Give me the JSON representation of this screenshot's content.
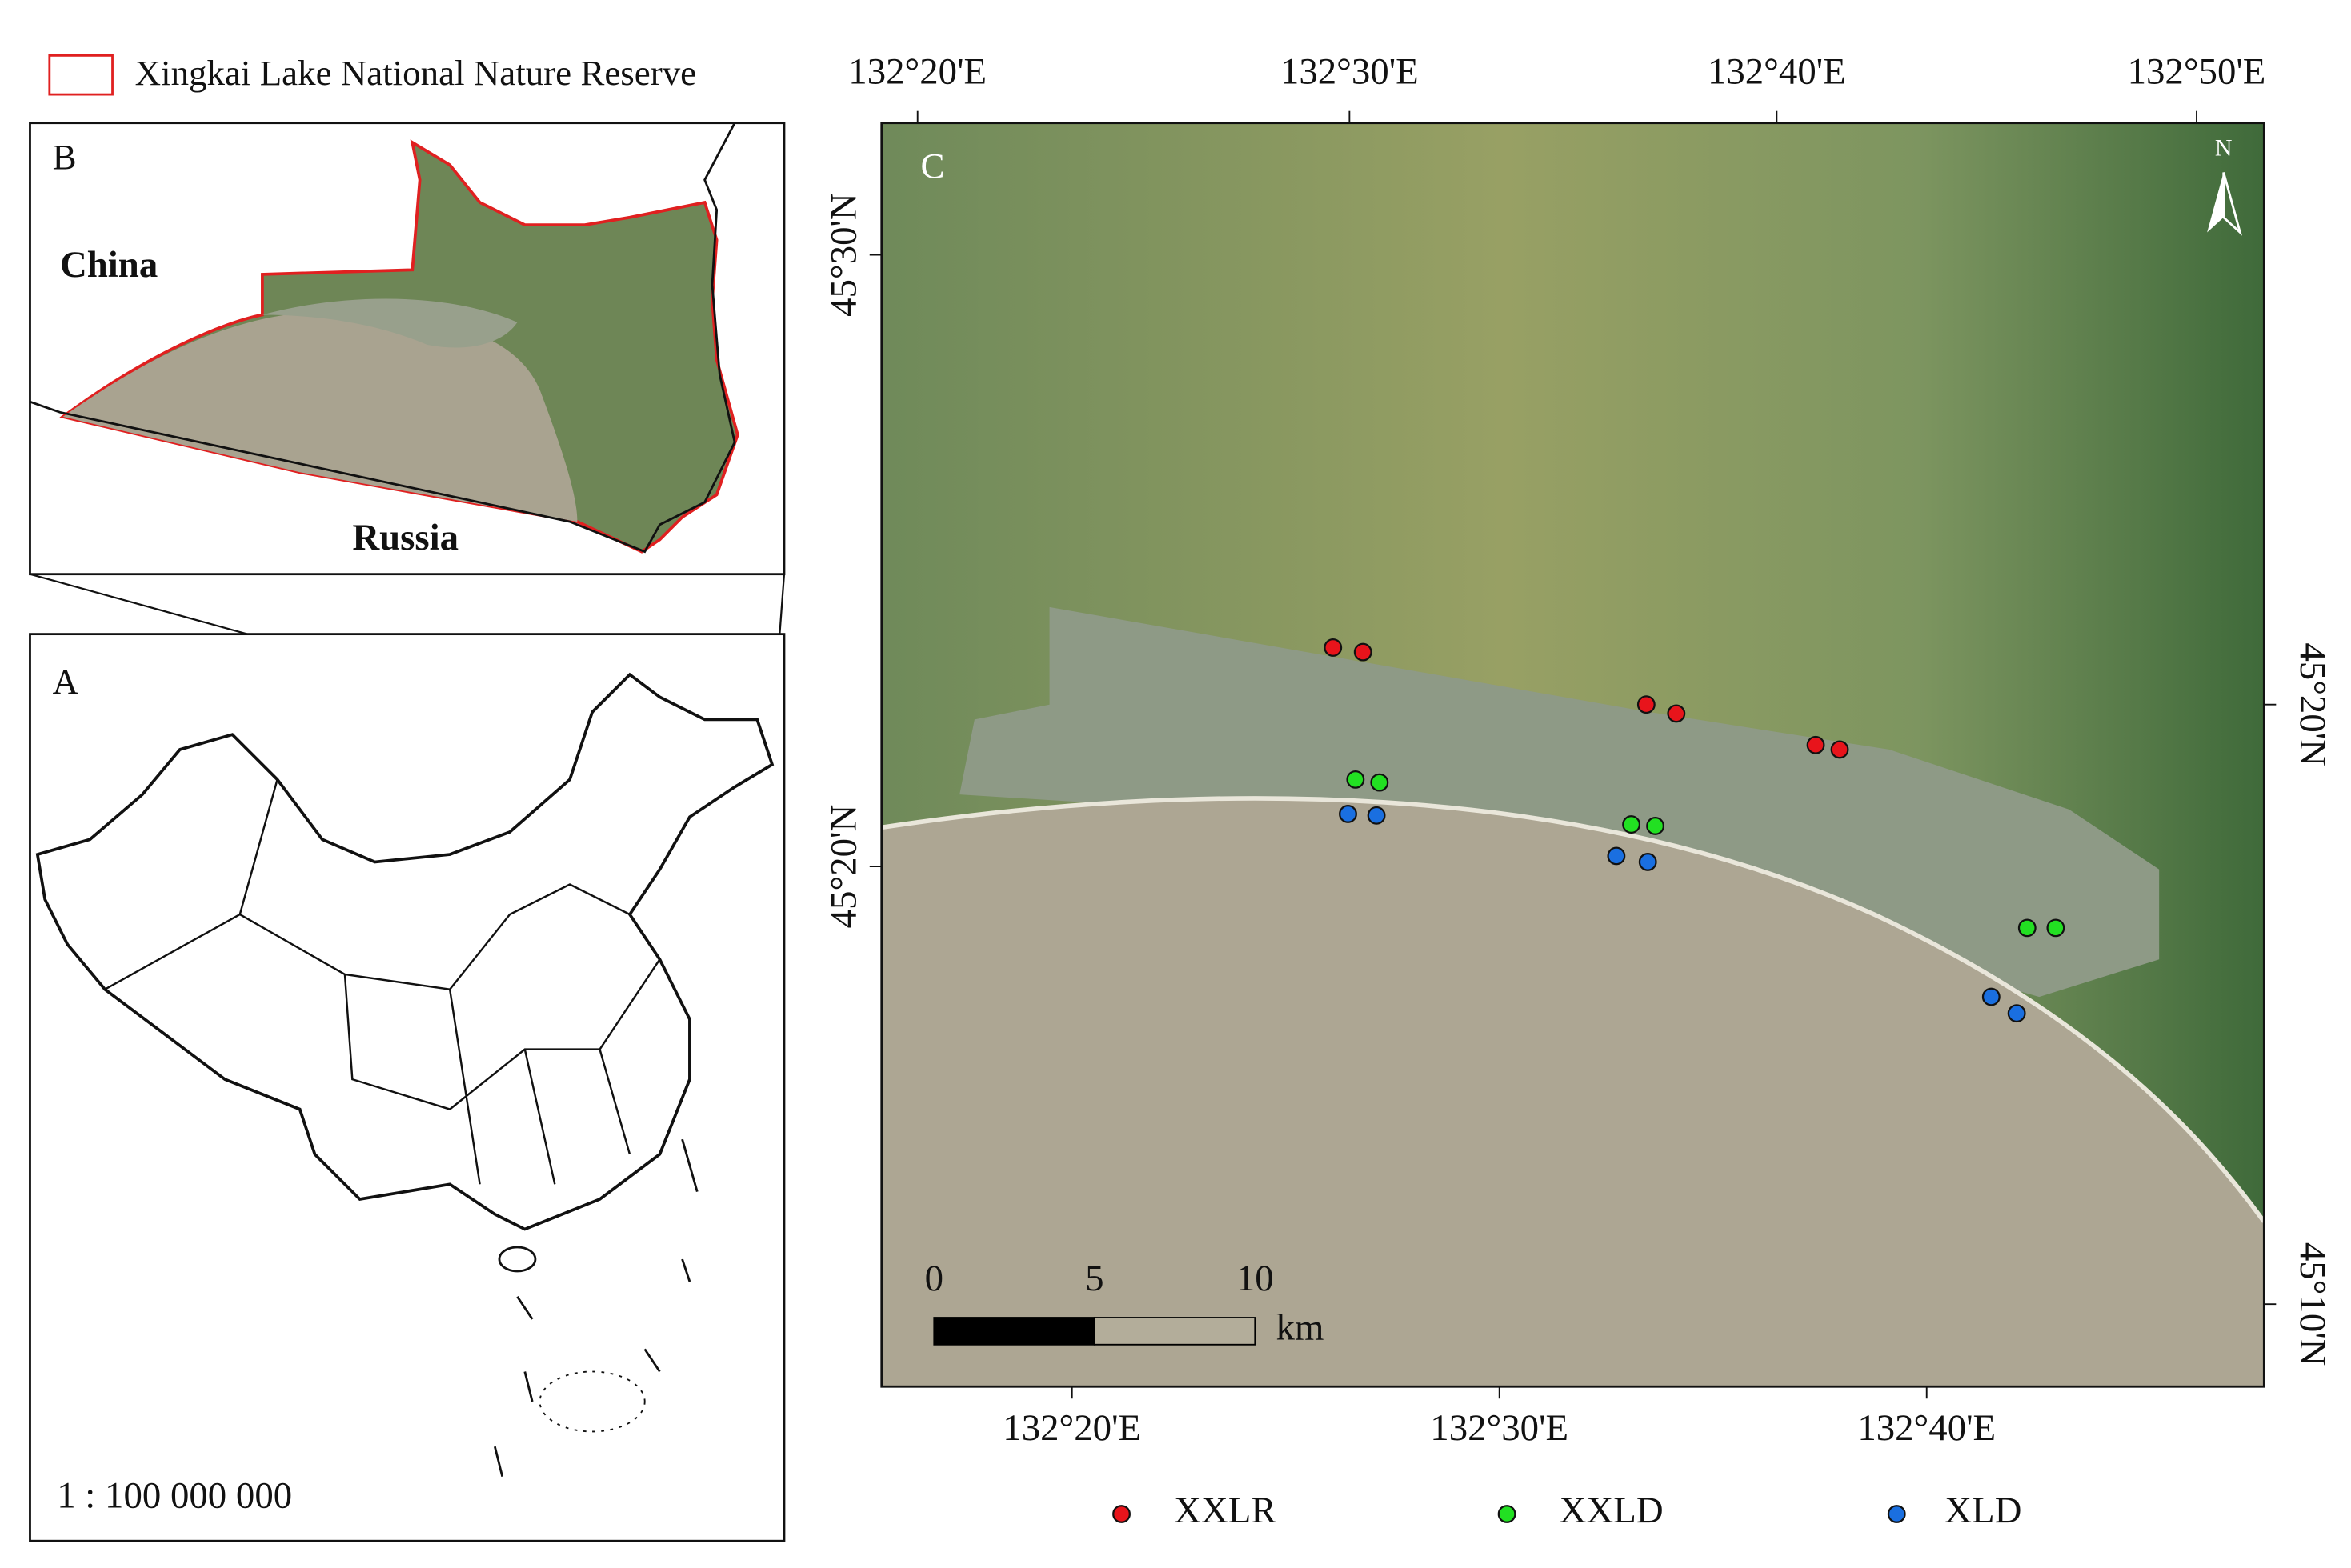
{
  "legend_reserve": "Xingkai Lake National Nature Reserve",
  "panel_b": {
    "label": "B",
    "china": "China",
    "russia": "Russia"
  },
  "panel_a": {
    "label": "A",
    "scale": "1 : 100 000 000"
  },
  "panel_c": {
    "label": "C",
    "north": "N",
    "top_ticks": [
      "132°20'E",
      "132°30'E",
      "132°40'E",
      "132°50'E"
    ],
    "bottom_ticks": [
      "132°20'E",
      "132°30'E",
      "132°40'E"
    ],
    "left_ticks": [
      "45°30'N",
      "45°20'N"
    ],
    "right_ticks": [
      "45°20'N",
      "45°10'N"
    ],
    "scalebar": {
      "labels": [
        0,
        5,
        10
      ],
      "unit": "km"
    }
  },
  "sites": [
    {
      "name": "XXLR",
      "color": "#e8141b"
    },
    {
      "name": "XXLD",
      "color": "#22e022"
    },
    {
      "name": "XLD",
      "color": "#1a6fe0"
    }
  ]
}
